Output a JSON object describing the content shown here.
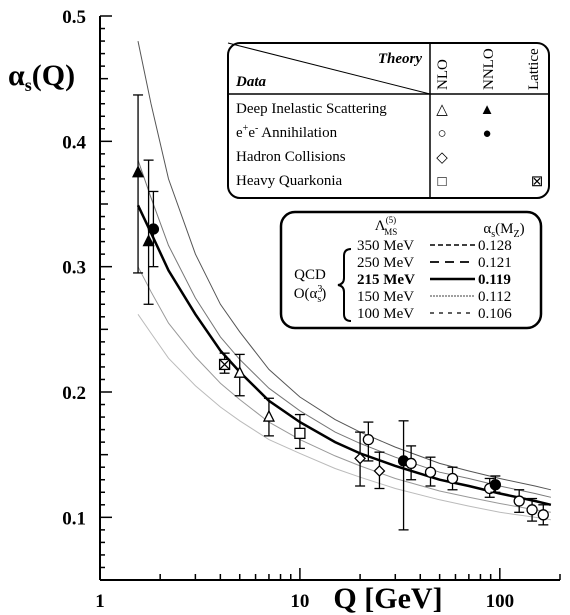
{
  "chart_data": {
    "type": "scatter",
    "x_scale": "log",
    "xlim": [
      1,
      200
    ],
    "ylim": [
      0.05,
      0.5
    ],
    "xlabel": "Q [GeV]",
    "ylabel": "αs(Q)",
    "x_ticks": [
      {
        "value": 1,
        "label": "1"
      },
      {
        "value": 10,
        "label": "10"
      },
      {
        "value": 100,
        "label": "100"
      }
    ],
    "y_ticks": [
      {
        "value": 0.1,
        "label": "0.1"
      },
      {
        "value": 0.2,
        "label": "0.2"
      },
      {
        "value": 0.3,
        "label": "0.3"
      },
      {
        "value": 0.4,
        "label": "0.4"
      },
      {
        "value": 0.5,
        "label": "0.5"
      }
    ],
    "curves": [
      {
        "lambda": "350 MeV",
        "alpha_mz": "0.128",
        "style": "thin",
        "color": "#555555",
        "x": [
          1.55,
          1.8,
          2.2,
          3,
          4,
          5,
          7,
          10,
          15,
          20,
          30,
          50,
          70,
          100,
          150,
          180
        ],
        "y": [
          0.48,
          0.43,
          0.37,
          0.31,
          0.27,
          0.248,
          0.218,
          0.196,
          0.178,
          0.168,
          0.156,
          0.143,
          0.137,
          0.131,
          0.125,
          0.122
        ]
      },
      {
        "lambda": "250 MeV",
        "alpha_mz": "0.121",
        "style": "thin",
        "color": "#777777",
        "x": [
          1.55,
          1.8,
          2.2,
          3,
          4,
          5,
          7,
          10,
          15,
          20,
          30,
          50,
          70,
          100,
          150,
          180
        ],
        "y": [
          0.385,
          0.355,
          0.317,
          0.275,
          0.244,
          0.226,
          0.203,
          0.185,
          0.168,
          0.159,
          0.148,
          0.136,
          0.131,
          0.125,
          0.119,
          0.116
        ]
      },
      {
        "lambda": "215 MeV",
        "alpha_mz": "0.119",
        "style": "bold",
        "color": "#000000",
        "x": [
          1.55,
          1.8,
          2.2,
          3,
          4,
          5,
          7,
          10,
          15,
          20,
          30,
          50,
          70,
          100,
          150,
          180
        ],
        "y": [
          0.349,
          0.327,
          0.297,
          0.262,
          0.233,
          0.216,
          0.193,
          0.176,
          0.16,
          0.151,
          0.141,
          0.13,
          0.125,
          0.119,
          0.113,
          0.11
        ]
      },
      {
        "lambda": "150 MeV",
        "alpha_mz": "0.112",
        "style": "thin",
        "color": "#999999",
        "x": [
          1.55,
          1.8,
          2.2,
          3,
          4,
          5,
          7,
          10,
          15,
          20,
          30,
          50,
          70,
          100,
          150,
          180
        ],
        "y": [
          0.3,
          0.28,
          0.255,
          0.228,
          0.207,
          0.194,
          0.176,
          0.162,
          0.149,
          0.141,
          0.131,
          0.121,
          0.116,
          0.111,
          0.106,
          0.104
        ]
      },
      {
        "lambda": "100 MeV",
        "alpha_mz": "0.106",
        "style": "thin",
        "color": "#bbbbbb",
        "x": [
          1.55,
          1.8,
          2.2,
          3,
          4,
          5,
          7,
          10,
          15,
          20,
          30,
          50,
          70,
          100,
          150,
          180
        ],
        "y": [
          0.262,
          0.247,
          0.227,
          0.205,
          0.188,
          0.177,
          0.162,
          0.151,
          0.139,
          0.132,
          0.123,
          0.114,
          0.109,
          0.104,
          0.1,
          0.098
        ]
      }
    ],
    "points": [
      {
        "x": 1.55,
        "y": 0.375,
        "lo": 0.295,
        "hi": 0.437,
        "marker": "triangle-filled"
      },
      {
        "x": 1.75,
        "y": 0.32,
        "lo": 0.27,
        "hi": 0.385,
        "marker": "triangle-filled"
      },
      {
        "x": 1.85,
        "y": 0.33,
        "lo": 0.3,
        "hi": 0.36,
        "marker": "circle-filled"
      },
      {
        "x": 4.2,
        "y": 0.222,
        "lo": 0.215,
        "hi": 0.231,
        "marker": "square-crossed"
      },
      {
        "x": 5.0,
        "y": 0.215,
        "lo": 0.197,
        "hi": 0.23,
        "marker": "triangle-open"
      },
      {
        "x": 7.0,
        "y": 0.18,
        "lo": 0.165,
        "hi": 0.195,
        "marker": "triangle-open"
      },
      {
        "x": 10.0,
        "y": 0.167,
        "lo": 0.155,
        "hi": 0.182,
        "marker": "square-open"
      },
      {
        "x": 20.0,
        "y": 0.147,
        "lo": 0.125,
        "hi": 0.168,
        "marker": "diamond-open"
      },
      {
        "x": 22.0,
        "y": 0.162,
        "lo": 0.145,
        "hi": 0.176,
        "marker": "circle-open"
      },
      {
        "x": 25.0,
        "y": 0.137,
        "lo": 0.123,
        "hi": 0.152,
        "marker": "diamond-open"
      },
      {
        "x": 33.0,
        "y": 0.145,
        "lo": 0.09,
        "hi": 0.177,
        "marker": "circle-filled"
      },
      {
        "x": 36.0,
        "y": 0.143,
        "lo": 0.13,
        "hi": 0.157,
        "marker": "circle-open"
      },
      {
        "x": 45.0,
        "y": 0.136,
        "lo": 0.125,
        "hi": 0.148,
        "marker": "circle-open"
      },
      {
        "x": 58.0,
        "y": 0.131,
        "lo": 0.122,
        "hi": 0.14,
        "marker": "circle-open"
      },
      {
        "x": 89.0,
        "y": 0.123,
        "lo": 0.116,
        "hi": 0.131,
        "marker": "circle-open"
      },
      {
        "x": 95.0,
        "y": 0.126,
        "lo": 0.12,
        "hi": 0.133,
        "marker": "circle-filled"
      },
      {
        "x": 125.0,
        "y": 0.113,
        "lo": 0.104,
        "hi": 0.122,
        "marker": "circle-open"
      },
      {
        "x": 145.0,
        "y": 0.106,
        "lo": 0.097,
        "hi": 0.115,
        "marker": "circle-open"
      },
      {
        "x": 165.0,
        "y": 0.102,
        "lo": 0.094,
        "hi": 0.11,
        "marker": "circle-open"
      }
    ]
  },
  "legend_table": {
    "header_data": "Data",
    "header_theory": "Theory",
    "columns": [
      "NLO",
      "NNLO",
      "Lattice"
    ],
    "rows": [
      {
        "label": "Deep Inelastic Scattering",
        "cells": [
          "△",
          "▲",
          ""
        ]
      },
      {
        "label": "e+e- Annihilation",
        "cells": [
          "○",
          "●",
          ""
        ]
      },
      {
        "label": "Hadron Collisions",
        "cells": [
          "◇",
          "",
          ""
        ]
      },
      {
        "label": "Heavy Quarkonia",
        "cells": [
          "□",
          "",
          "⊠"
        ]
      }
    ]
  },
  "qcd_box": {
    "col1_header": "Λ(5)MS",
    "col2_header": "αs(MZ)",
    "qcd_label_1": "QCD",
    "qcd_label_2": "O(αs3)",
    "rows": [
      {
        "lambda": "350 MeV",
        "value": "0.128",
        "bold": false
      },
      {
        "lambda": "250 MeV",
        "value": "0.121",
        "bold": false
      },
      {
        "lambda": "215 MeV",
        "value": "0.119",
        "bold": true
      },
      {
        "lambda": "150 MeV",
        "value": "0.112",
        "bold": false
      },
      {
        "lambda": "100 MeV",
        "value": "0.106",
        "bold": false
      }
    ]
  }
}
